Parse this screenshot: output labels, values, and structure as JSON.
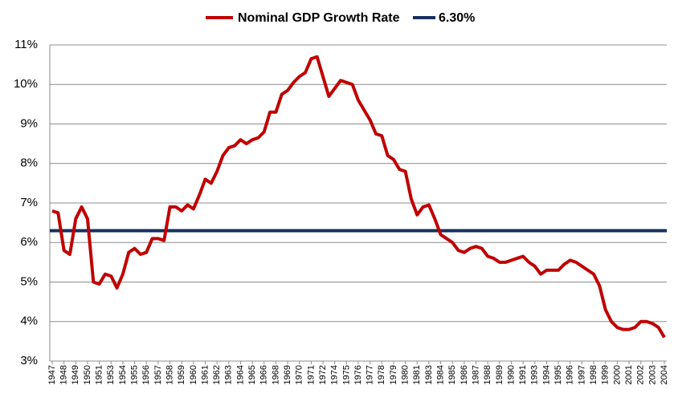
{
  "chart_data": {
    "type": "line",
    "categories": [
      "1947",
      null,
      "1948",
      null,
      "1949",
      null,
      "1950",
      null,
      "1951",
      null,
      "1953",
      null,
      "1954",
      null,
      "1955",
      null,
      "1956",
      null,
      "1957",
      null,
      "1958",
      null,
      "1959",
      null,
      "1960",
      null,
      "1961",
      null,
      "1962",
      null,
      "1963",
      null,
      "1964",
      null,
      "1965",
      null,
      "1966",
      null,
      "1968",
      null,
      "1969",
      null,
      "1970",
      null,
      "1971",
      null,
      "1972",
      null,
      "1974",
      null,
      "1975",
      null,
      "1976",
      null,
      "1977",
      null,
      "1978",
      null,
      "1979",
      null,
      "1980",
      null,
      "1981",
      null,
      "1983",
      null,
      "1984",
      null,
      "1985",
      null,
      "1986",
      null,
      "1987",
      null,
      "1988",
      null,
      "1989",
      null,
      "1990",
      null,
      "1991",
      null,
      "1993",
      null,
      "1994",
      null,
      "1995",
      null,
      "1996",
      null,
      "1997",
      null,
      "1998",
      null,
      "1999",
      null,
      "2000",
      null,
      "2001",
      null,
      "2002",
      null,
      "2003",
      null,
      "2004"
    ],
    "series": [
      {
        "name": "Nominal GDP Growth Rate",
        "color": "#c00000",
        "values": [
          6.8,
          6.75,
          5.8,
          5.7,
          6.6,
          6.9,
          6.6,
          5.0,
          4.95,
          5.2,
          5.15,
          4.85,
          5.2,
          5.75,
          5.85,
          5.7,
          5.75,
          6.1,
          6.1,
          6.05,
          6.9,
          6.9,
          6.8,
          6.95,
          6.85,
          7.2,
          7.6,
          7.5,
          7.8,
          8.2,
          8.4,
          8.45,
          8.6,
          8.5,
          8.6,
          8.65,
          8.8,
          9.3,
          9.3,
          9.75,
          9.85,
          10.05,
          10.2,
          10.3,
          10.65,
          10.7,
          10.2,
          9.7,
          9.9,
          10.1,
          10.05,
          10.0,
          9.6,
          9.35,
          9.1,
          8.75,
          8.7,
          8.2,
          8.1,
          7.85,
          7.8,
          7.1,
          6.7,
          6.9,
          6.95,
          6.6,
          6.2,
          6.1,
          6.0,
          5.8,
          5.75,
          5.85,
          5.9,
          5.85,
          5.65,
          5.6,
          5.5,
          5.5,
          5.55,
          5.6,
          5.65,
          5.5,
          5.4,
          5.2,
          5.3,
          5.3,
          5.3,
          5.45,
          5.55,
          5.5,
          5.4,
          5.3,
          5.2,
          4.9,
          4.3,
          4.0,
          3.85,
          3.8,
          3.8,
          3.85,
          4.0,
          4.0,
          3.95,
          3.85,
          3.6
        ]
      }
    ],
    "reference_line": {
      "name": "6.30%",
      "value": 6.3,
      "color": "#162f5e"
    },
    "ylim": [
      3,
      11
    ],
    "yticks": [
      {
        "value": 3,
        "label": "3%"
      },
      {
        "value": 4,
        "label": "4%"
      },
      {
        "value": 5,
        "label": "5%"
      },
      {
        "value": 6,
        "label": "6%"
      },
      {
        "value": 7,
        "label": "7%"
      },
      {
        "value": 8,
        "label": "8%"
      },
      {
        "value": 9,
        "label": "9%"
      },
      {
        "value": 10,
        "label": "10%"
      },
      {
        "value": 11,
        "label": "11%"
      }
    ],
    "grid": true
  }
}
